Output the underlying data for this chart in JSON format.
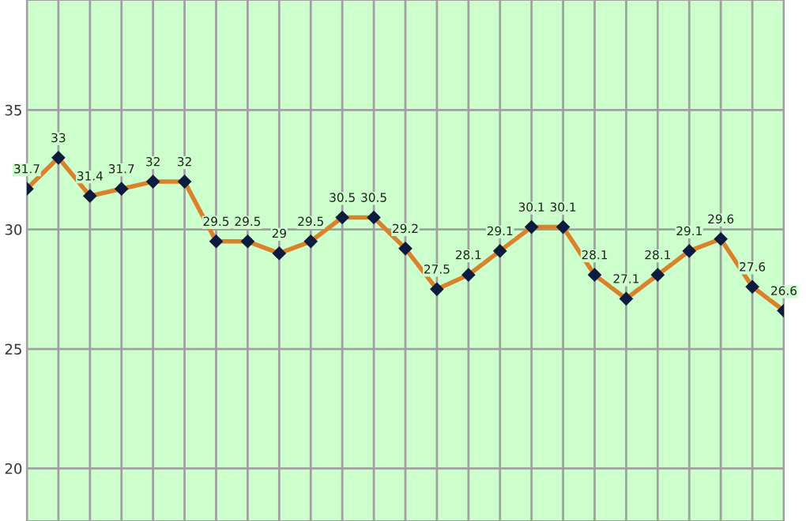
{
  "chart_data": {
    "type": "line",
    "categories": [
      null,
      null,
      null,
      null,
      null,
      null,
      null,
      null,
      null,
      null,
      null,
      null,
      null,
      null,
      null,
      null,
      null,
      null,
      null,
      null,
      null,
      null,
      null,
      null,
      null
    ],
    "series": [
      {
        "color": "#d9822b",
        "values": [
          31.7,
          33,
          31.4,
          31.7,
          32,
          32,
          29.5,
          29.5,
          29,
          29.5,
          30.5,
          30.5,
          29.2,
          27.5,
          28.1,
          29.1,
          30.1,
          30.1,
          28.1,
          27.1,
          28.1,
          29.1,
          29.6,
          27.6,
          26.6
        ]
      }
    ],
    "ylim": [
      17.8,
      39.6
    ],
    "yticks": [
      20,
      25,
      30,
      35
    ],
    "grid": true,
    "tick_labels": "y",
    "data_labels": true,
    "marker": "diamond",
    "line_style": "solid"
  }
}
